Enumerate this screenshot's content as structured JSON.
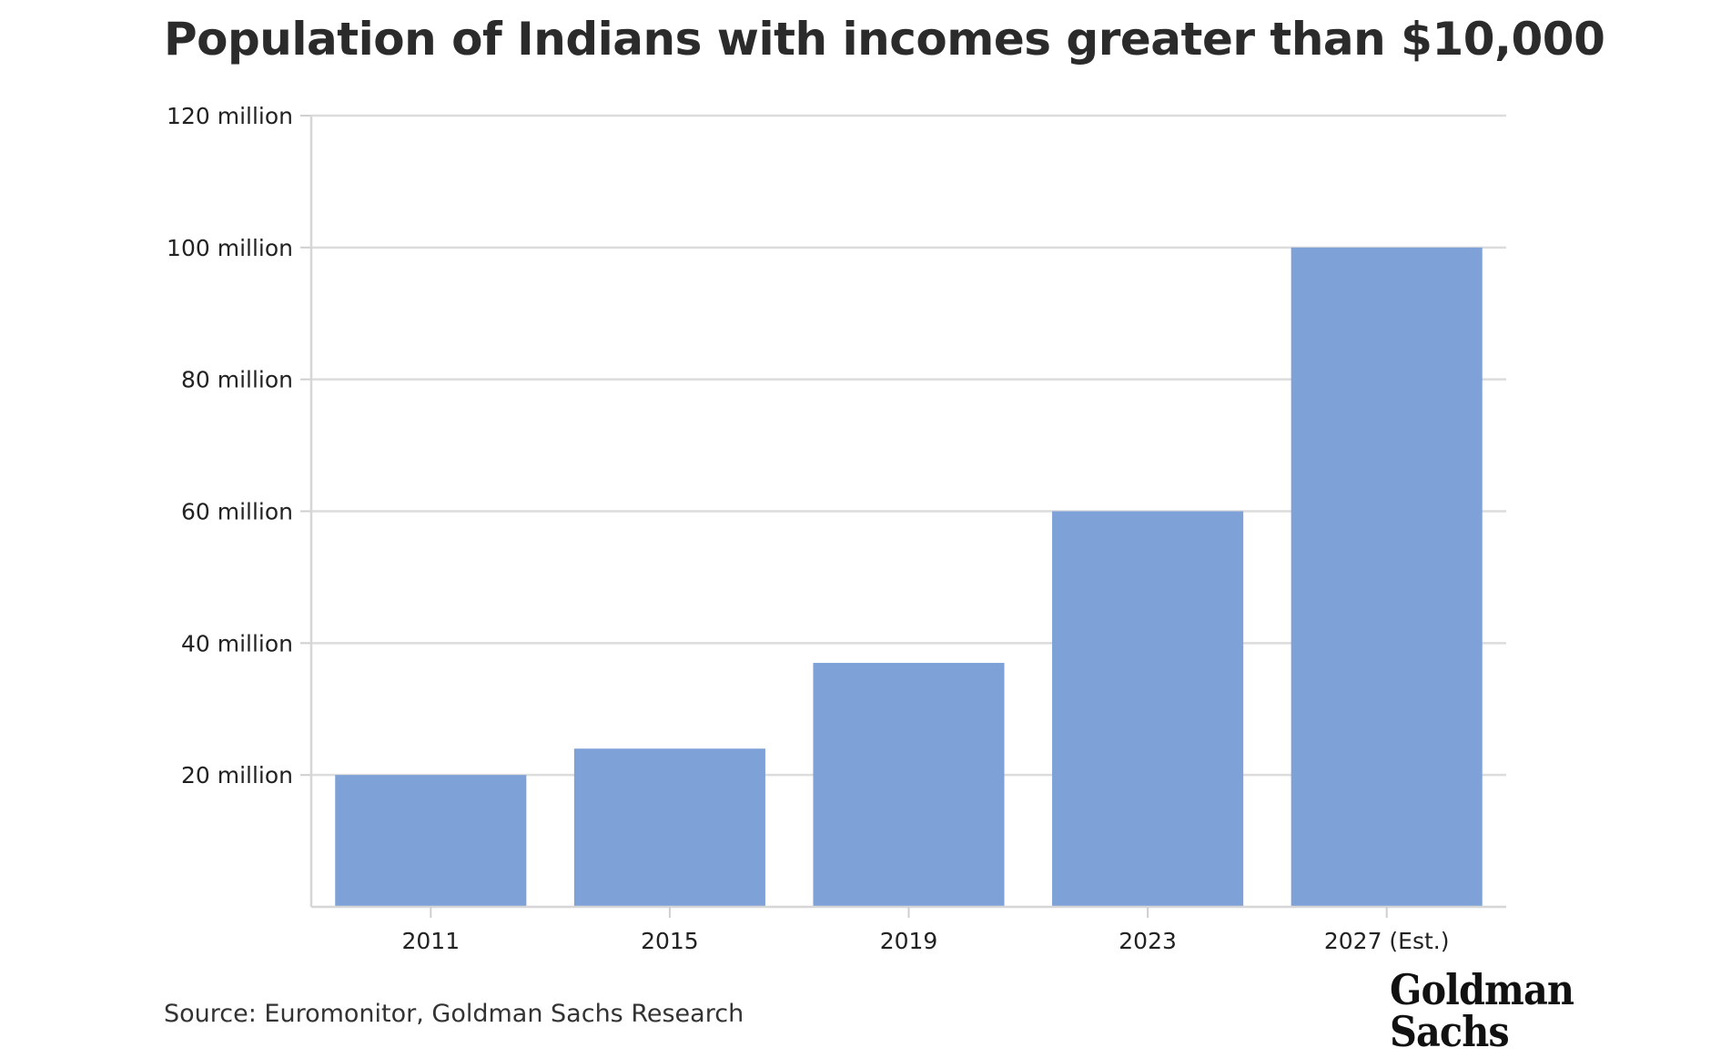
{
  "chart_data": {
    "type": "bar",
    "title": "Population of Indians with incomes greater than $10,000",
    "categories": [
      "2011",
      "2015",
      "2019",
      "2023",
      "2027 (Est.)"
    ],
    "values": [
      20,
      24,
      37,
      60,
      100
    ],
    "unit": "million",
    "xlabel": "",
    "ylabel": "",
    "ylim": [
      0,
      120
    ],
    "yticks": [
      20,
      40,
      60,
      80,
      100,
      120
    ],
    "ytick_labels": [
      "20 million",
      "40 million",
      "60 million",
      "80 million",
      "100 million",
      "120 million"
    ],
    "grid": true,
    "bar_color": "#7ea1d7"
  },
  "source": "Source: Euromonitor, Goldman Sachs Research",
  "logo": {
    "line1": "Goldman",
    "line2": "Sachs"
  }
}
